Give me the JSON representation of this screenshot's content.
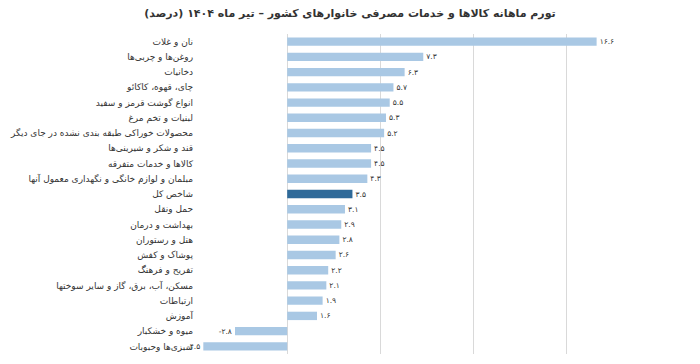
{
  "chart_data": {
    "type": "bar",
    "orientation": "horizontal",
    "title": "تورم ماهانه کالاها و خدمات مصرفی خانوارهای کشور – تیر ماه ۱۴۰۴ (درصد)",
    "categories": [
      "نان و غلات",
      "روغن‌ها و چربی‌ها",
      "دخانیات",
      "چای، قهوه، کاکائو",
      "انواع گوشت قرمز و سفید",
      "لبنیات و تخم مرغ",
      "محصولات خوراکی طبقه بندی نشده در جای دیگر",
      "قند و شکر و شیرینی‌ها",
      "کالاها و خدمات متفرقه",
      "مبلمان و لوازم خانگی و نگهداری معمول آنها",
      "شاخص کل",
      "حمل ونقل",
      "بهداشت و درمان",
      "هتل و رستوران",
      "پوشاک و کفش",
      "تفریح و فرهنگ",
      "مسکن، آب، برق، گاز و سایر سوختها",
      "ارتباطات",
      "آموزش",
      "میوه و خشکبار",
      "سبزی‌ها وحبوبات"
    ],
    "values": [
      16.6,
      7.3,
      6.3,
      5.7,
      5.5,
      5.3,
      5.2,
      4.5,
      4.5,
      4.3,
      3.5,
      3.1,
      2.9,
      2.8,
      2.6,
      2.2,
      2.1,
      1.9,
      1.6,
      -2.8,
      -4.5
    ],
    "value_labels": [
      "۱۶.۶",
      "۷.۳",
      "۶.۳",
      "۵.۷",
      "۵.۵",
      "۵.۳",
      "۵.۲",
      "۴.۵",
      "۴.۵",
      "۴.۳",
      "۳.۵",
      "۳.۱",
      "۲.۹",
      "۲.۸",
      "۲.۶",
      "۲.۲",
      "۲.۱",
      "۱.۹",
      "۱.۶",
      "-۲.۸",
      "-۴.۵"
    ],
    "colors": [
      "#a9c8e4",
      "#a9c8e4",
      "#a9c8e4",
      "#a9c8e4",
      "#a9c8e4",
      "#a9c8e4",
      "#a9c8e4",
      "#a9c8e4",
      "#a9c8e4",
      "#a9c8e4",
      "#2f6a99",
      "#a9c8e4",
      "#a9c8e4",
      "#a9c8e4",
      "#a9c8e4",
      "#a9c8e4",
      "#a9c8e4",
      "#a9c8e4",
      "#a9c8e4",
      "#a9c8e4",
      "#a9c8e4"
    ],
    "xlim": [
      -5,
      20
    ],
    "xticks": [
      -5,
      0,
      5,
      10,
      15,
      20
    ],
    "grid": true,
    "data_labels": true,
    "tick_labels": "y"
  }
}
